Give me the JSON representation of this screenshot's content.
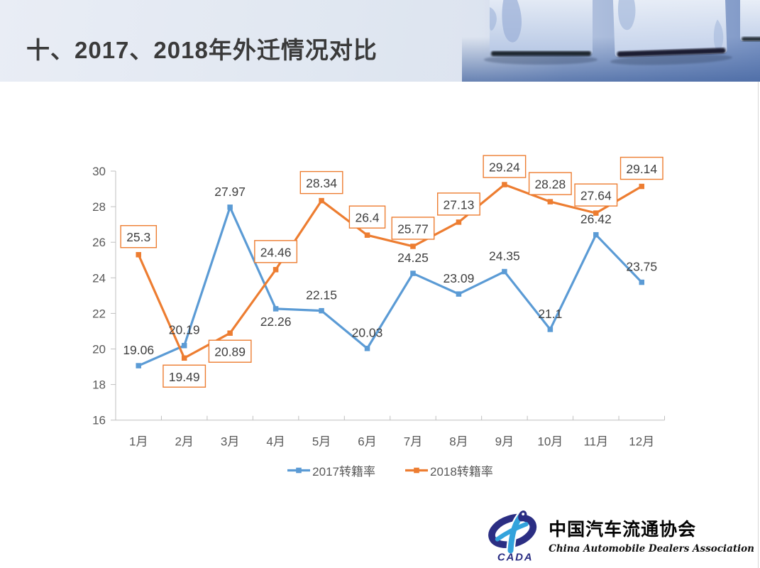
{
  "header": {
    "title": "十、2017、2018年外迁情况对比"
  },
  "chart_data": {
    "type": "line",
    "title": "",
    "xlabel": "",
    "ylabel": "",
    "categories": [
      "1月",
      "2月",
      "3月",
      "4月",
      "5月",
      "6月",
      "7月",
      "8月",
      "9月",
      "10月",
      "11月",
      "12月"
    ],
    "series": [
      {
        "name": "2017转籍率",
        "color": "#5B9BD5",
        "values": [
          19.06,
          20.19,
          27.97,
          22.26,
          22.15,
          20.03,
          24.25,
          23.09,
          24.35,
          21.1,
          26.42,
          23.75
        ],
        "label_style": "plain",
        "label_positions": [
          "above",
          "above",
          "above",
          "below",
          "above",
          "above",
          "above",
          "above",
          "above",
          "above",
          "above",
          "above"
        ]
      },
      {
        "name": "2018转籍率",
        "color": "#ED7D31",
        "values": [
          25.3,
          19.49,
          20.89,
          24.46,
          28.34,
          26.4,
          25.77,
          27.13,
          29.24,
          28.28,
          27.64,
          29.14
        ],
        "label_style": "boxed",
        "label_positions": [
          "above",
          "below",
          "below",
          "above",
          "above",
          "above",
          "above",
          "above",
          "above",
          "above",
          "above",
          "above"
        ]
      }
    ],
    "ylim": [
      16,
      30
    ],
    "yticks": [
      16,
      18,
      20,
      22,
      24,
      26,
      28,
      30
    ],
    "grid": false,
    "legend_position": "bottom",
    "colors": {
      "data_label": "#404040",
      "axis_line": "#BFBFBF",
      "tick_label": "#595959"
    }
  },
  "logo": {
    "acronym": "CADA",
    "org_name_cn": "中国汽车流通协会",
    "org_name_en": "China Automobile Dealers Association",
    "colors": {
      "navy": "#2B2E83",
      "light_blue": "#33A3DC"
    }
  }
}
